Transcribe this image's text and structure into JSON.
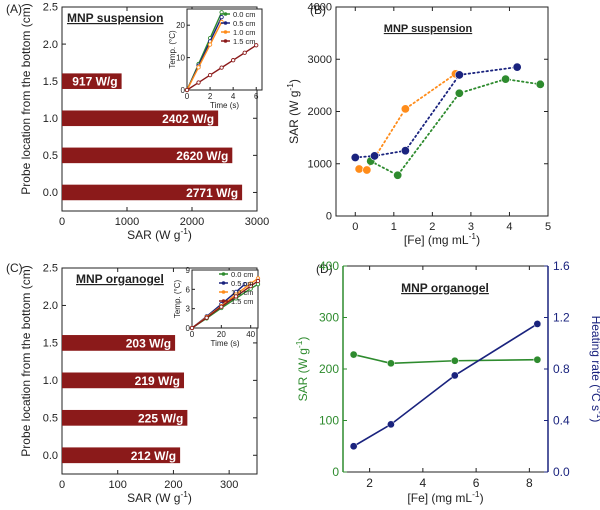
{
  "chart_data": [
    {
      "panel": "(A)",
      "type": "bar",
      "orientation": "horizontal",
      "title": "MNP suspension",
      "xlabel": "SAR (W g",
      "xlabel_sup": "-1",
      "xlabel_close": ")",
      "ylabel": "Probe location from the bottom (cm)",
      "xlim": [
        0,
        3000
      ],
      "ylim": [
        -0.25,
        2.5
      ],
      "xticks": [
        0,
        1000,
        2000,
        3000
      ],
      "xticklabels": [
        "0",
        "1000",
        "2000",
        "3000"
      ],
      "yticks": [
        0.0,
        0.5,
        1.0,
        1.5,
        2.0,
        2.5
      ],
      "yticklabels": [
        "0.0",
        "0.5",
        "1.0",
        "1.5",
        "2.0",
        "2.5"
      ],
      "categories": [
        0.0,
        0.5,
        1.0,
        1.5
      ],
      "values": [
        2771,
        2620,
        2402,
        917
      ],
      "bar_labels": [
        "2771 W/g",
        "2620 W/g",
        "2402 W/g",
        "917 W/g"
      ],
      "bar_color": "#8b1a1a",
      "inset": {
        "type": "line",
        "xlabel": "Time (s)",
        "ylabel": "Temp. (°C)",
        "xlim": [
          0,
          6.5
        ],
        "ylim": [
          0,
          25
        ],
        "xticks": [
          0,
          2,
          4,
          6
        ],
        "xticklabels": [
          "0",
          "2",
          "4",
          "6"
        ],
        "yticks": [
          0,
          10,
          20
        ],
        "yticklabels": [
          "0",
          "10",
          "20"
        ],
        "series": [
          {
            "name": "0.0 cm",
            "color": "#2e8b2e",
            "x": [
              0,
              1,
              2,
              3
            ],
            "y": [
              0,
              8,
              16,
              24
            ]
          },
          {
            "name": "0.5 cm",
            "color": "#1a237e",
            "x": [
              0,
              1,
              2,
              3
            ],
            "y": [
              0,
              7.5,
              15,
              22.5
            ]
          },
          {
            "name": "1.0 cm",
            "color": "#ff8c1a",
            "x": [
              0,
              1,
              2,
              3
            ],
            "y": [
              0,
              7,
              14,
              21
            ]
          },
          {
            "name": "1.5 cm",
            "color": "#8b1a1a",
            "x": [
              0,
              1,
              2,
              3,
              4,
              5,
              6
            ],
            "y": [
              0,
              2.3,
              4.6,
              6.9,
              9.2,
              11.5,
              13.8
            ]
          }
        ]
      }
    },
    {
      "panel": "(B)",
      "type": "scatter",
      "title": "MNP suspension",
      "xlabel": "[Fe] (mg mL",
      "xlabel_sup": "-1",
      "xlabel_close": ")",
      "ylabel": "SAR (W g",
      "ylabel_sup": "-1",
      "ylabel_close": ")",
      "xlim": [
        -0.5,
        5
      ],
      "ylim": [
        0,
        4000
      ],
      "xticks": [
        0,
        1,
        2,
        3,
        4,
        5
      ],
      "xticklabels": [
        "0",
        "1",
        "2",
        "3",
        "4",
        "5"
      ],
      "yticks": [
        0,
        1000,
        2000,
        3000,
        4000
      ],
      "yticklabels": [
        "0",
        "1000",
        "2000",
        "3000",
        "4000"
      ],
      "series": [
        {
          "name": "orange",
          "color": "#ff8c1a",
          "x": [
            0.1,
            0.3,
            1.3,
            2.6
          ],
          "y": [
            900,
            880,
            2050,
            2720
          ]
        },
        {
          "name": "green",
          "color": "#2e8b2e",
          "x": [
            0.4,
            1.1,
            2.7,
            3.9,
            4.8
          ],
          "y": [
            1050,
            780,
            2350,
            2620,
            2520
          ]
        },
        {
          "name": "navy",
          "color": "#1a237e",
          "x": [
            0.0,
            0.5,
            1.3,
            2.7,
            4.2
          ],
          "y": [
            1120,
            1150,
            1250,
            2700,
            2850
          ]
        }
      ]
    },
    {
      "panel": "(C)",
      "type": "bar",
      "orientation": "horizontal",
      "title": "MNP organogel",
      "xlabel": "SAR (W g",
      "xlabel_sup": "-1",
      "xlabel_close": ")",
      "ylabel": "Probe location from the bottom (cm)",
      "xlim": [
        0,
        350
      ],
      "ylim": [
        -0.25,
        2.5
      ],
      "xticks": [
        0,
        100,
        200,
        300
      ],
      "xticklabels": [
        "0",
        "100",
        "200",
        "300"
      ],
      "yticks": [
        0.0,
        0.5,
        1.0,
        1.5,
        2.0,
        2.5
      ],
      "yticklabels": [
        "0.0",
        "0.5",
        "1.0",
        "1.5",
        "2.0",
        "2.5"
      ],
      "categories": [
        0.0,
        0.5,
        1.0,
        1.5
      ],
      "values": [
        212,
        225,
        219,
        203
      ],
      "bar_labels": [
        "212 W/g",
        "225 W/g",
        "219 W/g",
        "203 W/g"
      ],
      "bar_color": "#8b1a1a",
      "inset": {
        "type": "line",
        "xlabel": "Time (s)",
        "ylabel": "Temp. (°C)",
        "xlim": [
          0,
          45
        ],
        "ylim": [
          0,
          9
        ],
        "xticks": [
          0,
          20,
          40
        ],
        "xticklabels": [
          "0",
          "20",
          "40"
        ],
        "yticks": [
          0,
          3,
          6,
          9
        ],
        "yticklabels": [
          "0",
          "3",
          "6",
          "9"
        ],
        "series": [
          {
            "name": "0.0 cm",
            "color": "#2e8b2e",
            "x": [
              0,
              10,
              20,
              30,
              40,
              45
            ],
            "y": [
              0,
              1.5,
              3.1,
              4.6,
              6.1,
              6.8
            ]
          },
          {
            "name": "0.5 cm",
            "color": "#1a237e",
            "x": [
              0,
              10,
              20,
              30,
              36
            ],
            "y": [
              0,
              1.8,
              3.7,
              5.6,
              6.8
            ]
          },
          {
            "name": "1.0 cm",
            "color": "#ff8c1a",
            "x": [
              0,
              10,
              20,
              30,
              40,
              45
            ],
            "y": [
              0,
              1.7,
              3.4,
              5.2,
              6.9,
              7.7
            ]
          },
          {
            "name": "1.5 cm",
            "color": "#8b1a1a",
            "x": [
              0,
              10,
              20,
              30,
              40,
              45
            ],
            "y": [
              0,
              1.6,
              3.3,
              4.9,
              6.5,
              7.3
            ]
          }
        ]
      }
    },
    {
      "panel": "(D)",
      "type": "line",
      "title": "MNP organogel",
      "xlabel": "[Fe] (mg mL",
      "xlabel_sup": "-1",
      "xlabel_close": ")",
      "ylabel": "SAR (W g",
      "ylabel_sup": "-1",
      "ylabel_close": ")",
      "ylabel_right": "Heating rate (",
      "ylabel_right_sup": "o",
      "ylabel_right_mid": "C s",
      "ylabel_right_sup2": "-1",
      "ylabel_right_close": ")",
      "xlim": [
        1,
        8.7
      ],
      "ylim": [
        0,
        400
      ],
      "ylim_right": [
        0,
        1.6
      ],
      "xticks": [
        2,
        4,
        6,
        8
      ],
      "xticklabels": [
        "2",
        "4",
        "6",
        "8"
      ],
      "yticks": [
        0,
        100,
        200,
        300,
        400
      ],
      "yticklabels": [
        "0",
        "100",
        "200",
        "300",
        "400"
      ],
      "yticks_right": [
        0.0,
        0.4,
        0.8,
        1.2,
        1.6
      ],
      "yticklabels_right": [
        "0.0",
        "0.4",
        "0.8",
        "1.2",
        "1.6"
      ],
      "left_color": "#2e8b2e",
      "right_color": "#1a237e",
      "series": [
        {
          "name": "SAR",
          "axis": "left",
          "color": "#2e8b2e",
          "x": [
            1.4,
            2.8,
            5.2,
            8.3
          ],
          "y": [
            228,
            211,
            216,
            218
          ]
        },
        {
          "name": "Heating rate",
          "axis": "right",
          "color": "#1a237e",
          "x": [
            1.4,
            2.8,
            5.2,
            8.3
          ],
          "y": [
            0.2,
            0.37,
            0.75,
            1.15
          ]
        }
      ]
    }
  ]
}
